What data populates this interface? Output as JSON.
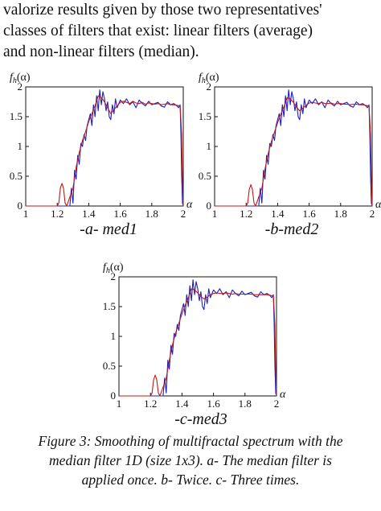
{
  "body_text": [
    "valorize results given by those two representatives'",
    "classes of filters that exist: linear filters (average)",
    "and non-linear filters (median)."
  ],
  "figures": [
    {
      "id": "a",
      "sublabel": "-a- med1"
    },
    {
      "id": "b",
      "sublabel": "-b-med2"
    },
    {
      "id": "c",
      "sublabel": "-c-med3"
    }
  ],
  "caption": [
    "Figure 3: Smoothing of multifractal spectrum with the",
    "median filter 1D (size 1x3). a- The median filter is",
    "applied once. b- Twice. c- Three times."
  ],
  "chart_data": [
    {
      "type": "line",
      "panel": "-a- med1",
      "xlabel": "α",
      "ylabel": "fh(α)",
      "xlim": [
        1,
        2
      ],
      "ylim": [
        0,
        2
      ],
      "xticks": [
        "1",
        "1.2",
        "1.4",
        "1.6",
        "1.8",
        "2"
      ],
      "yticks": [
        "0",
        "0.5",
        "1",
        "1.5",
        "2"
      ],
      "colors": {
        "original": "#1f1fbf",
        "filtered": "#c01818"
      },
      "series": [
        {
          "values": "original",
          "x": [
            1.0,
            1.25,
            1.28,
            1.29,
            1.3,
            1.31,
            1.32,
            1.33,
            1.34,
            1.35,
            1.36,
            1.37,
            1.38,
            1.39,
            1.4,
            1.41,
            1.42,
            1.43,
            1.44,
            1.45,
            1.46,
            1.47,
            1.48,
            1.49,
            1.5,
            1.51,
            1.52,
            1.53,
            1.54,
            1.55,
            1.56,
            1.57,
            1.58,
            1.6,
            1.62,
            1.64,
            1.66,
            1.68,
            1.7,
            1.72,
            1.74,
            1.76,
            1.78,
            1.8,
            1.82,
            1.84,
            1.86,
            1.88,
            1.9,
            1.92,
            1.94,
            1.96,
            1.97,
            1.98,
            1.985,
            1.99,
            1.995,
            2.0
          ],
          "y": [
            0,
            0,
            0,
            0.3,
            0.05,
            0.6,
            0.45,
            0.85,
            0.7,
            1.05,
            1.0,
            1.2,
            1.1,
            1.35,
            1.45,
            1.55,
            1.35,
            1.7,
            1.5,
            1.85,
            1.6,
            1.95,
            1.7,
            1.92,
            1.8,
            1.6,
            1.75,
            1.5,
            1.45,
            1.7,
            1.55,
            1.8,
            1.65,
            1.78,
            1.72,
            1.8,
            1.7,
            1.75,
            1.65,
            1.78,
            1.72,
            1.68,
            1.76,
            1.7,
            1.72,
            1.74,
            1.68,
            1.66,
            1.75,
            1.7,
            1.72,
            1.68,
            1.65,
            1.7,
            1.2,
            0.5,
            0.05,
            0
          ]
        },
        {
          "values": "filtered",
          "x": [
            1.0,
            1.2,
            1.21,
            1.22,
            1.23,
            1.24,
            1.25,
            1.26,
            1.3,
            1.32,
            1.34,
            1.36,
            1.38,
            1.4,
            1.42,
            1.44,
            1.46,
            1.48,
            1.5,
            1.52,
            1.54,
            1.56,
            1.58,
            1.6,
            1.62,
            1.64,
            1.66,
            1.68,
            1.7,
            1.72,
            1.74,
            1.76,
            1.78,
            1.8,
            1.82,
            1.84,
            1.86,
            1.88,
            1.9,
            1.92,
            1.94,
            1.96,
            1.98,
            1.99,
            1.995,
            2.0
          ],
          "y": [
            0,
            0,
            0.05,
            0.3,
            0.38,
            0.3,
            0.05,
            0,
            0.3,
            0.65,
            0.9,
            1.1,
            1.25,
            1.42,
            1.55,
            1.68,
            1.85,
            1.82,
            1.75,
            1.65,
            1.55,
            1.62,
            1.68,
            1.74,
            1.76,
            1.74,
            1.72,
            1.76,
            1.73,
            1.72,
            1.74,
            1.71,
            1.73,
            1.72,
            1.71,
            1.72,
            1.7,
            1.71,
            1.72,
            1.7,
            1.7,
            1.69,
            1.68,
            1.2,
            0.4,
            0
          ]
        }
      ]
    },
    {
      "type": "line",
      "panel": "-b-med2",
      "xlabel": "α",
      "ylabel": "fh(α)",
      "xlim": [
        1,
        2
      ],
      "ylim": [
        0,
        2
      ],
      "xticks": [
        "1",
        "1.2",
        "1.4",
        "1.6",
        "1.8",
        "2"
      ],
      "yticks": [
        "0",
        "0.5",
        "1",
        "1.5",
        "2"
      ],
      "colors": {
        "original": "#1f1fbf",
        "filtered": "#c01818"
      },
      "series": [
        {
          "values": "original",
          "x": [
            1.0,
            1.25,
            1.28,
            1.29,
            1.3,
            1.31,
            1.32,
            1.33,
            1.34,
            1.35,
            1.36,
            1.37,
            1.38,
            1.39,
            1.4,
            1.41,
            1.42,
            1.43,
            1.44,
            1.45,
            1.46,
            1.47,
            1.48,
            1.49,
            1.5,
            1.51,
            1.52,
            1.53,
            1.54,
            1.55,
            1.56,
            1.57,
            1.58,
            1.6,
            1.62,
            1.64,
            1.66,
            1.68,
            1.7,
            1.72,
            1.74,
            1.76,
            1.78,
            1.8,
            1.82,
            1.84,
            1.86,
            1.88,
            1.9,
            1.92,
            1.94,
            1.96,
            1.97,
            1.98,
            1.985,
            1.99,
            1.995,
            2.0
          ],
          "y": [
            0,
            0,
            0,
            0.3,
            0.05,
            0.6,
            0.45,
            0.85,
            0.7,
            1.05,
            1.0,
            1.2,
            1.1,
            1.35,
            1.45,
            1.55,
            1.35,
            1.7,
            1.5,
            1.85,
            1.6,
            1.95,
            1.7,
            1.92,
            1.8,
            1.6,
            1.75,
            1.5,
            1.45,
            1.7,
            1.55,
            1.8,
            1.65,
            1.78,
            1.72,
            1.8,
            1.7,
            1.75,
            1.65,
            1.78,
            1.72,
            1.68,
            1.76,
            1.7,
            1.72,
            1.74,
            1.68,
            1.66,
            1.75,
            1.7,
            1.72,
            1.68,
            1.65,
            1.7,
            1.2,
            0.5,
            0.05,
            0
          ]
        },
        {
          "values": "filtered",
          "x": [
            1.0,
            1.2,
            1.21,
            1.22,
            1.23,
            1.24,
            1.25,
            1.26,
            1.3,
            1.32,
            1.34,
            1.36,
            1.38,
            1.4,
            1.42,
            1.44,
            1.46,
            1.48,
            1.5,
            1.52,
            1.54,
            1.56,
            1.58,
            1.6,
            1.62,
            1.64,
            1.66,
            1.68,
            1.7,
            1.72,
            1.74,
            1.76,
            1.78,
            1.8,
            1.82,
            1.84,
            1.86,
            1.88,
            1.9,
            1.92,
            1.94,
            1.96,
            1.98,
            1.99,
            1.995,
            2.0
          ],
          "y": [
            0,
            0,
            0.05,
            0.28,
            0.36,
            0.28,
            0.05,
            0,
            0.3,
            0.62,
            0.88,
            1.08,
            1.24,
            1.4,
            1.54,
            1.66,
            1.82,
            1.8,
            1.74,
            1.66,
            1.6,
            1.64,
            1.69,
            1.73,
            1.74,
            1.73,
            1.72,
            1.74,
            1.72,
            1.72,
            1.73,
            1.71,
            1.72,
            1.72,
            1.71,
            1.71,
            1.7,
            1.71,
            1.71,
            1.7,
            1.7,
            1.69,
            1.68,
            1.2,
            0.4,
            0
          ]
        }
      ]
    },
    {
      "type": "line",
      "panel": "-c-med3",
      "xlabel": "α",
      "ylabel": "fh(α)",
      "xlim": [
        1,
        2
      ],
      "ylim": [
        0,
        2
      ],
      "xticks": [
        "1",
        "1.2",
        "1.4",
        "1.6",
        "1.8",
        "2"
      ],
      "yticks": [
        "0",
        "0.5",
        "1",
        "1.5",
        "2"
      ],
      "colors": {
        "original": "#1f1fbf",
        "filtered": "#c01818"
      },
      "series": [
        {
          "values": "original",
          "x": [
            1.0,
            1.25,
            1.28,
            1.29,
            1.3,
            1.31,
            1.32,
            1.33,
            1.34,
            1.35,
            1.36,
            1.37,
            1.38,
            1.39,
            1.4,
            1.41,
            1.42,
            1.43,
            1.44,
            1.45,
            1.46,
            1.47,
            1.48,
            1.49,
            1.5,
            1.51,
            1.52,
            1.53,
            1.54,
            1.55,
            1.56,
            1.57,
            1.58,
            1.6,
            1.62,
            1.64,
            1.66,
            1.68,
            1.7,
            1.72,
            1.74,
            1.76,
            1.78,
            1.8,
            1.82,
            1.84,
            1.86,
            1.88,
            1.9,
            1.92,
            1.94,
            1.96,
            1.97,
            1.98,
            1.985,
            1.99,
            1.995,
            2.0
          ],
          "y": [
            0,
            0,
            0,
            0.3,
            0.05,
            0.6,
            0.45,
            0.85,
            0.7,
            1.05,
            1.0,
            1.2,
            1.1,
            1.35,
            1.45,
            1.55,
            1.35,
            1.7,
            1.5,
            1.85,
            1.6,
            1.95,
            1.7,
            1.92,
            1.8,
            1.6,
            1.75,
            1.5,
            1.45,
            1.7,
            1.55,
            1.8,
            1.65,
            1.78,
            1.72,
            1.8,
            1.7,
            1.75,
            1.65,
            1.78,
            1.72,
            1.68,
            1.76,
            1.7,
            1.72,
            1.74,
            1.68,
            1.66,
            1.75,
            1.7,
            1.72,
            1.68,
            1.65,
            1.7,
            1.2,
            0.5,
            0.05,
            0
          ]
        },
        {
          "values": "filtered",
          "x": [
            1.0,
            1.2,
            1.21,
            1.22,
            1.23,
            1.24,
            1.25,
            1.26,
            1.3,
            1.32,
            1.34,
            1.36,
            1.38,
            1.4,
            1.42,
            1.44,
            1.46,
            1.48,
            1.5,
            1.52,
            1.54,
            1.56,
            1.58,
            1.6,
            1.62,
            1.64,
            1.66,
            1.68,
            1.7,
            1.72,
            1.74,
            1.76,
            1.78,
            1.8,
            1.82,
            1.84,
            1.86,
            1.88,
            1.9,
            1.92,
            1.94,
            1.96,
            1.98,
            1.99,
            1.995,
            2.0
          ],
          "y": [
            0,
            0,
            0.05,
            0.27,
            0.35,
            0.27,
            0.05,
            0,
            0.3,
            0.6,
            0.86,
            1.06,
            1.22,
            1.38,
            1.52,
            1.64,
            1.8,
            1.78,
            1.73,
            1.67,
            1.63,
            1.66,
            1.7,
            1.72,
            1.73,
            1.72,
            1.72,
            1.73,
            1.72,
            1.71,
            1.72,
            1.71,
            1.71,
            1.71,
            1.71,
            1.71,
            1.7,
            1.7,
            1.7,
            1.7,
            1.7,
            1.69,
            1.68,
            1.2,
            0.4,
            0
          ]
        }
      ]
    }
  ]
}
